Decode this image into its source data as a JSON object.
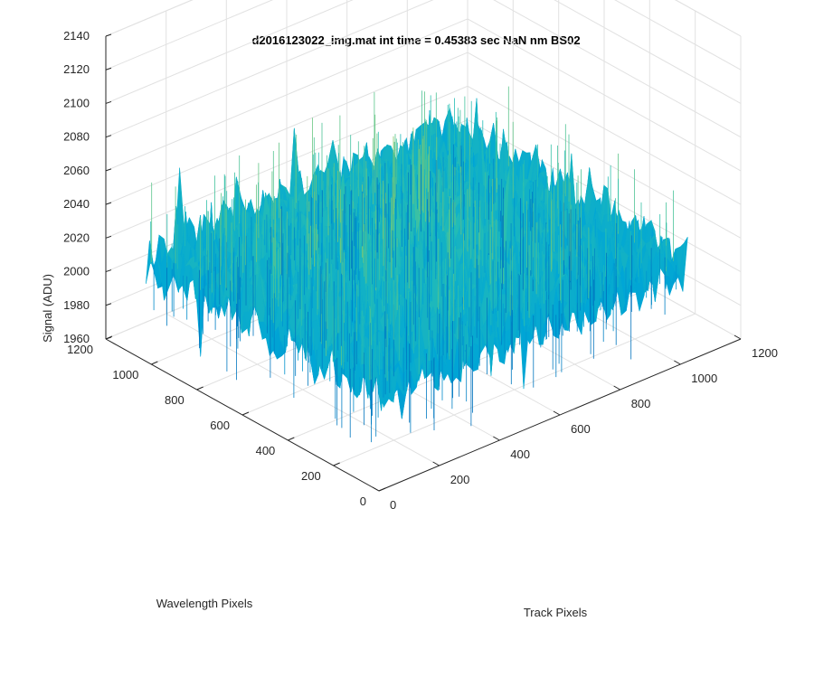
{
  "chart_data": {
    "type": "surface",
    "title": "d2016123022_img.mat int time = 0.45383 sec  NaN nm BS02",
    "xlabel": "Track Pixels",
    "ylabel": "Wavelength Pixels",
    "zlabel": "Signal (ADU)",
    "xlim": [
      0,
      1200
    ],
    "ylim": [
      0,
      1200
    ],
    "zlim": [
      1960,
      2140
    ],
    "xticks": [
      "0",
      "200",
      "400",
      "600",
      "800",
      "1000",
      "1200"
    ],
    "yticks": [
      "0",
      "200",
      "400",
      "600",
      "800",
      "1000",
      "1200"
    ],
    "zticks": [
      "1960",
      "1980",
      "2000",
      "2020",
      "2040",
      "2060",
      "2080",
      "2100",
      "2120",
      "2140"
    ],
    "grid": true,
    "colormap": [
      "#0072bd",
      "#00a6d6",
      "#2ac0b0",
      "#9dcb5b",
      "#e3d43a"
    ],
    "surface_extent": {
      "track": [
        0,
        1024
      ],
      "wavelength": [
        0,
        1024
      ]
    },
    "signal_baseline": 2018,
    "signal_noise_range": [
      1975,
      2125
    ],
    "signal_peak_region": "center"
  }
}
